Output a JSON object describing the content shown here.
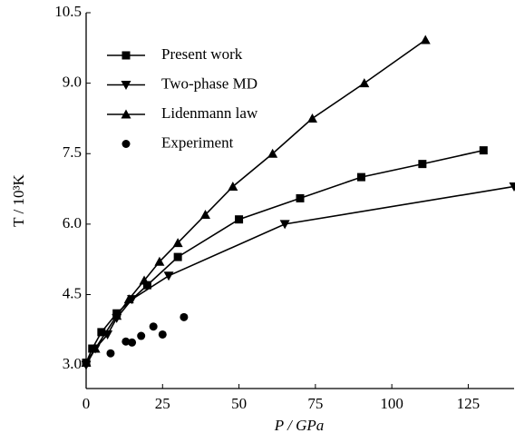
{
  "chart_data": {
    "type": "line",
    "x_label": "P / GPa",
    "y_label": "T / 10³K",
    "xlim": [
      0,
      140
    ],
    "xticks": [
      0,
      25,
      50,
      75,
      100,
      125
    ],
    "ylim": [
      2.5,
      10.5
    ],
    "yticks": [
      {
        "value": 3,
        "label": "3.0"
      },
      {
        "value": 4.5,
        "label": "4.5"
      },
      {
        "value": 6,
        "label": "6.0"
      },
      {
        "value": 7.5,
        "label": "7.5"
      },
      {
        "value": 9,
        "label": "9.0"
      },
      10.5
    ],
    "legend": "upper left",
    "series": [
      {
        "name": "Present work",
        "color": "#000000",
        "marker": "square",
        "line": true,
        "x": [
          0,
          2,
          5,
          10,
          20,
          30,
          50,
          70,
          90,
          110,
          130
        ],
        "values": [
          3.05,
          3.35,
          3.7,
          4.1,
          4.7,
          5.3,
          6.1,
          6.55,
          7.0,
          7.28,
          7.57
        ]
      },
      {
        "name": "Two-phase MD",
        "color": "#000000",
        "marker": "triangle-down",
        "line": true,
        "x": [
          0,
          3,
          7,
          10,
          15,
          27,
          65,
          140
        ],
        "values": [
          3.0,
          3.35,
          3.65,
          4.0,
          4.4,
          4.9,
          6.0,
          6.8
        ]
      },
      {
        "name": "Lidenmann law",
        "color": "#000000",
        "marker": "triangle-up",
        "line": true,
        "x": [
          0,
          3,
          10,
          14,
          19,
          24,
          30,
          39,
          48,
          61,
          74,
          91,
          111
        ],
        "values": [
          3.05,
          3.35,
          4.05,
          4.4,
          4.8,
          5.2,
          5.6,
          6.2,
          6.8,
          7.5,
          8.25,
          9.0,
          9.92
        ]
      },
      {
        "name": "Experiment",
        "color": "#000000",
        "marker": "circle",
        "line": false,
        "x": [
          8,
          13,
          15,
          18,
          22,
          25,
          32
        ],
        "values": [
          3.25,
          3.5,
          3.48,
          3.62,
          3.82,
          3.65,
          4.02
        ]
      }
    ]
  }
}
